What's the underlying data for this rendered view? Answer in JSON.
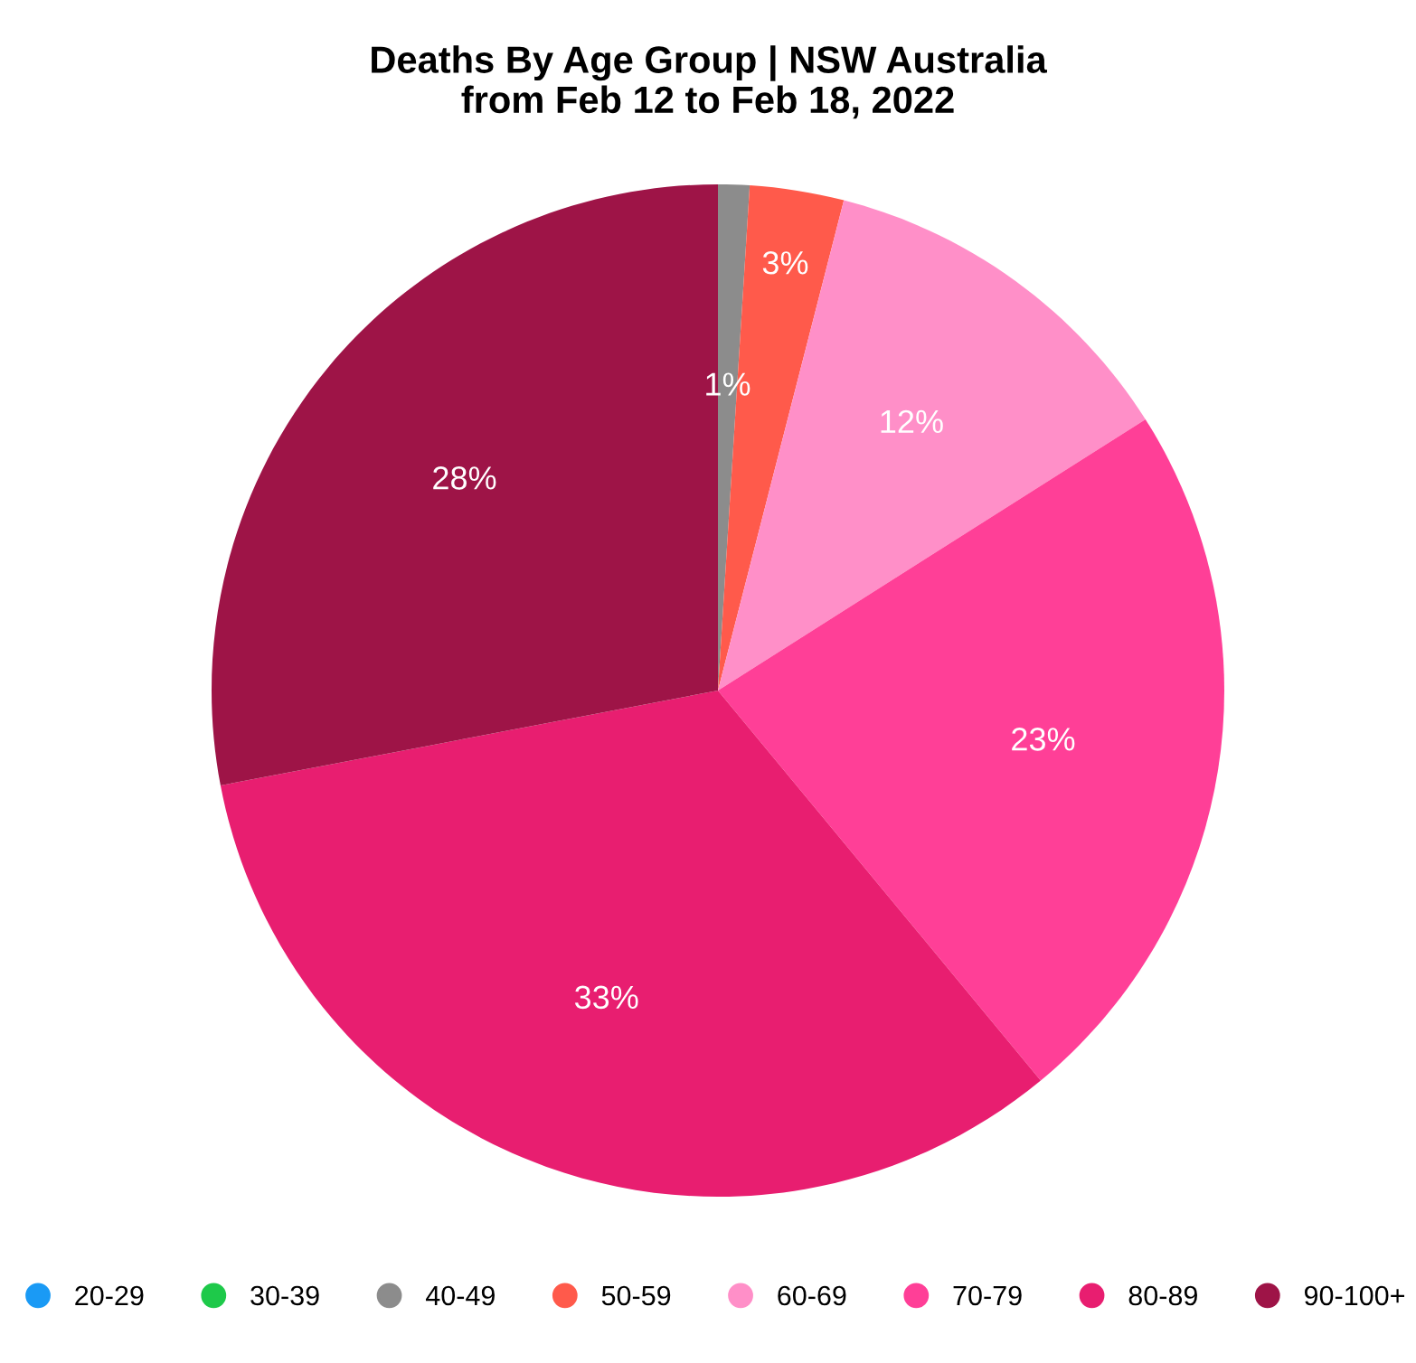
{
  "chart_data": {
    "type": "pie",
    "title": "Deaths By Age Group | NSW Australia",
    "subtitle": "from Feb 12 to Feb 18, 2022",
    "categories": [
      "20-29",
      "30-39",
      "40-49",
      "50-59",
      "60-69",
      "70-79",
      "80-89",
      "90-100+"
    ],
    "values": [
      0,
      0,
      1,
      3,
      12,
      23,
      33,
      28
    ],
    "value_labels": [
      null,
      null,
      "1%",
      "3%",
      "12%",
      "23%",
      "33%",
      "28%"
    ],
    "colors": [
      "#1a9af5",
      "#1ec94a",
      "#8c8c8c",
      "#ff5a4b",
      "#ff8fc8",
      "#ff3f97",
      "#e81e70",
      "#9e1447"
    ],
    "legend": "bottom"
  }
}
